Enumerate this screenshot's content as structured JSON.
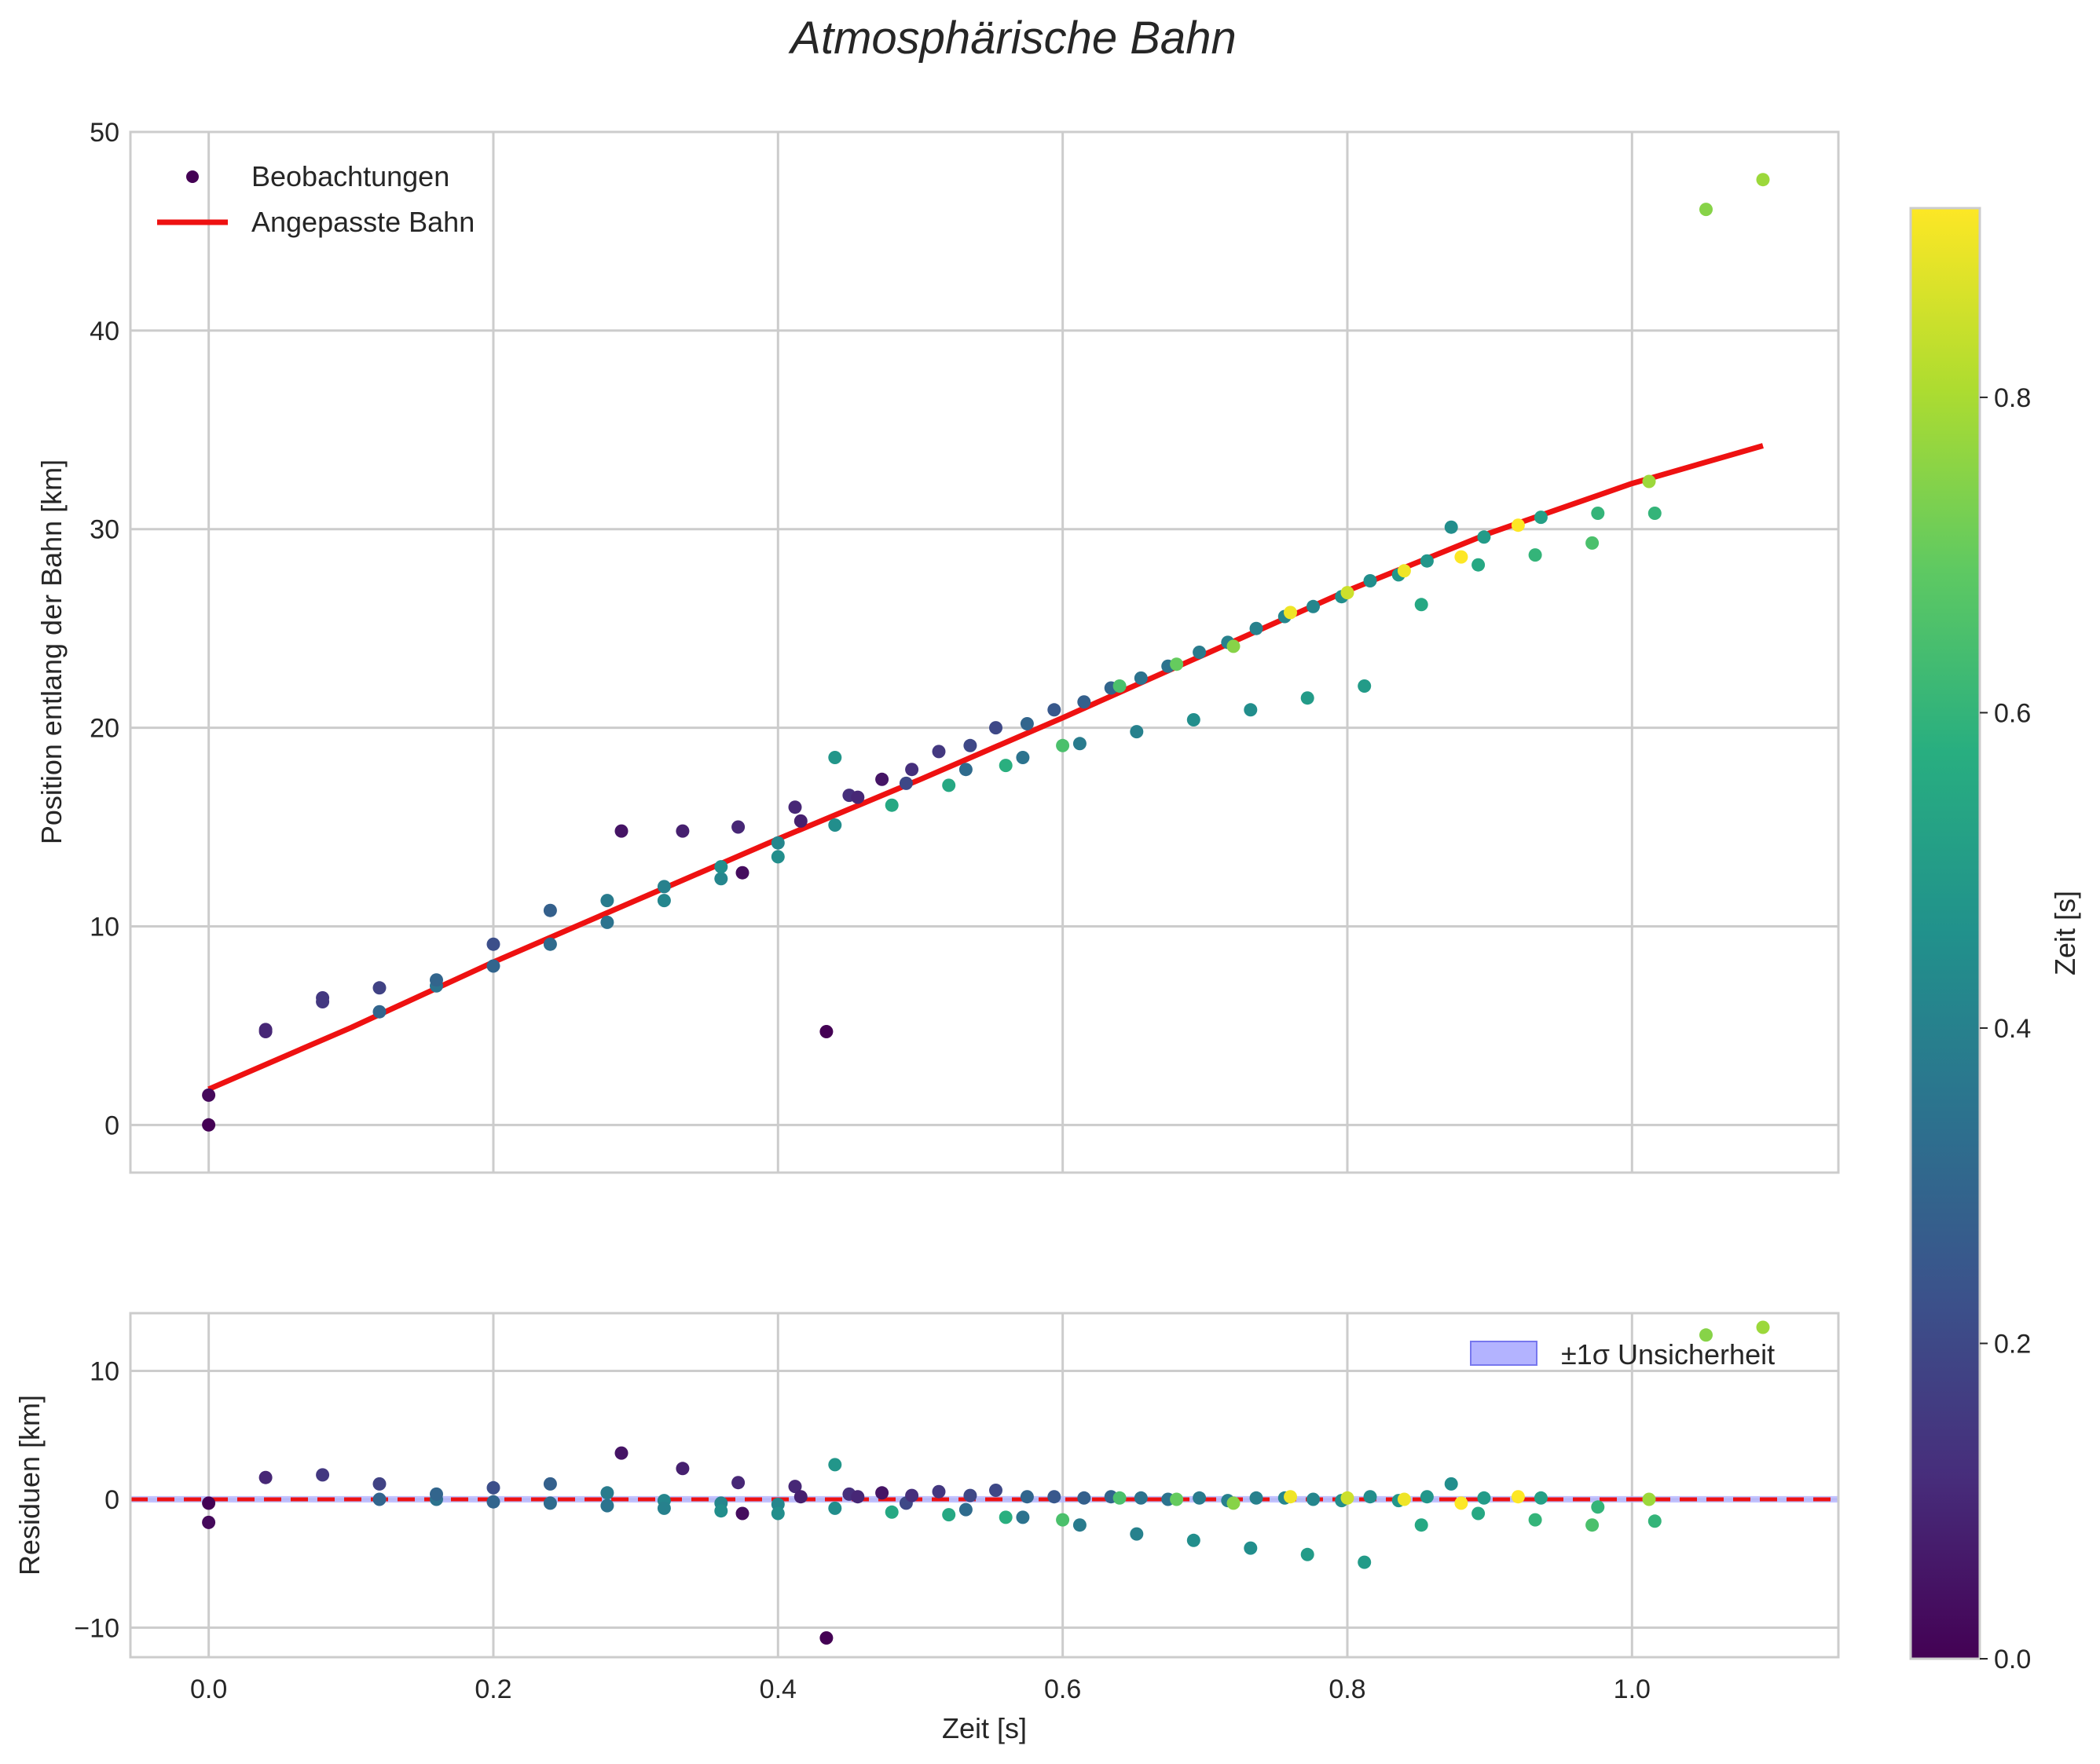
{
  "chart_data": [
    {
      "type": "scatter",
      "title": "Atmosphärische Bahn",
      "xlabel": "",
      "ylabel": "Position entlang der Bahn [km]",
      "xlim": [
        -0.055,
        1.145
      ],
      "ylim": [
        -2.4,
        50
      ],
      "xticks": [
        0.0,
        0.2,
        0.4,
        0.6,
        0.8,
        1.0
      ],
      "yticks": [
        0,
        10,
        20,
        30,
        40,
        50
      ],
      "ytick_labels": [
        "0",
        "10",
        "20",
        "30",
        "40",
        "50"
      ],
      "grid": true,
      "legend": {
        "placement": "top-left",
        "entries": [
          "Beobachtungen",
          "Angepasste Bahn"
        ]
      },
      "series": [
        {
          "name": "Beobachtungen",
          "kind": "scatter",
          "points": [
            [
              0.0,
              0.0,
              0.0
            ],
            [
              0.0,
              1.5,
              0.02
            ],
            [
              0.04,
              4.7,
              0.1
            ],
            [
              0.04,
              4.8,
              0.1
            ],
            [
              0.08,
              6.2,
              0.15
            ],
            [
              0.08,
              6.4,
              0.15
            ],
            [
              0.12,
              5.7,
              0.3
            ],
            [
              0.12,
              6.9,
              0.18
            ],
            [
              0.16,
              7.0,
              0.35
            ],
            [
              0.16,
              7.3,
              0.3
            ],
            [
              0.2,
              8.0,
              0.3
            ],
            [
              0.2,
              9.1,
              0.22
            ],
            [
              0.24,
              9.1,
              0.32
            ],
            [
              0.24,
              10.8,
              0.28
            ],
            [
              0.28,
              10.2,
              0.35
            ],
            [
              0.28,
              11.3,
              0.38
            ],
            [
              0.29,
              14.8,
              0.05
            ],
            [
              0.32,
              11.3,
              0.42
            ],
            [
              0.32,
              12.0,
              0.4
            ],
            [
              0.333,
              14.8,
              0.08
            ],
            [
              0.36,
              12.4,
              0.42
            ],
            [
              0.36,
              13.0,
              0.45
            ],
            [
              0.372,
              15.0,
              0.1
            ],
            [
              0.375,
              12.7,
              0.03
            ],
            [
              0.4,
              13.5,
              0.45
            ],
            [
              0.4,
              14.2,
              0.42
            ],
            [
              0.412,
              16.0,
              0.1
            ],
            [
              0.416,
              15.3,
              0.08
            ],
            [
              0.434,
              4.7,
              0.0
            ],
            [
              0.44,
              15.1,
              0.45
            ],
            [
              0.44,
              18.5,
              0.48
            ],
            [
              0.45,
              16.6,
              0.12
            ],
            [
              0.456,
              16.5,
              0.1
            ],
            [
              0.473,
              17.4,
              0.05
            ],
            [
              0.48,
              16.1,
              0.55
            ],
            [
              0.49,
              17.2,
              0.2
            ],
            [
              0.494,
              17.9,
              0.12
            ],
            [
              0.513,
              18.8,
              0.15
            ],
            [
              0.52,
              17.1,
              0.55
            ],
            [
              0.532,
              17.9,
              0.32
            ],
            [
              0.535,
              19.1,
              0.2
            ],
            [
              0.553,
              20.0,
              0.2
            ],
            [
              0.56,
              18.1,
              0.58
            ],
            [
              0.572,
              18.5,
              0.35
            ],
            [
              0.575,
              20.2,
              0.3
            ],
            [
              0.594,
              20.9,
              0.25
            ],
            [
              0.6,
              19.1,
              0.65
            ],
            [
              0.612,
              19.2,
              0.38
            ],
            [
              0.615,
              21.3,
              0.28
            ],
            [
              0.634,
              22.0,
              0.3
            ],
            [
              0.64,
              22.1,
              0.65
            ],
            [
              0.652,
              19.8,
              0.4
            ],
            [
              0.655,
              22.5,
              0.35
            ],
            [
              0.674,
              23.1,
              0.35
            ],
            [
              0.68,
              23.2,
              0.7
            ],
            [
              0.692,
              20.4,
              0.45
            ],
            [
              0.696,
              23.8,
              0.38
            ],
            [
              0.716,
              24.3,
              0.4
            ],
            [
              0.72,
              24.1,
              0.75
            ],
            [
              0.732,
              20.9,
              0.45
            ],
            [
              0.736,
              25.0,
              0.4
            ],
            [
              0.756,
              25.6,
              0.42
            ],
            [
              0.76,
              25.8,
              0.9
            ],
            [
              0.772,
              21.5,
              0.5
            ],
            [
              0.776,
              26.1,
              0.42
            ],
            [
              0.796,
              26.6,
              0.45
            ],
            [
              0.8,
              26.8,
              0.85
            ],
            [
              0.812,
              22.1,
              0.5
            ],
            [
              0.816,
              27.4,
              0.45
            ],
            [
              0.836,
              27.7,
              0.48
            ],
            [
              0.84,
              27.9,
              0.9
            ],
            [
              0.852,
              26.2,
              0.55
            ],
            [
              0.856,
              28.4,
              0.48
            ],
            [
              0.873,
              30.1,
              0.45
            ],
            [
              0.88,
              28.6,
              0.92
            ],
            [
              0.892,
              28.2,
              0.55
            ],
            [
              0.896,
              29.6,
              0.5
            ],
            [
              0.92,
              30.2,
              0.92
            ],
            [
              0.932,
              28.7,
              0.6
            ],
            [
              0.936,
              30.6,
              0.52
            ],
            [
              0.972,
              29.3,
              0.65
            ],
            [
              0.976,
              30.8,
              0.6
            ],
            [
              1.012,
              32.4,
              0.78
            ],
            [
              1.016,
              30.8,
              0.6
            ],
            [
              1.052,
              46.1,
              0.75
            ],
            [
              1.092,
              47.6,
              0.78
            ]
          ]
        },
        {
          "name": "Angepasste Bahn",
          "kind": "line",
          "color": "#ee1111",
          "x": [
            0.0,
            0.1,
            0.2,
            0.3,
            0.4,
            0.5,
            0.6,
            0.7,
            0.8,
            0.9,
            1.0,
            1.092
          ],
          "y": [
            1.8,
            4.9,
            8.2,
            11.3,
            14.4,
            17.4,
            20.5,
            23.7,
            26.9,
            29.8,
            32.3,
            34.2
          ]
        }
      ]
    },
    {
      "type": "scatter",
      "title": "",
      "xlabel": "Zeit [s]",
      "ylabel": "Residuen [km]",
      "xlim": [
        -0.055,
        1.145
      ],
      "ylim": [
        -12.3,
        14.5
      ],
      "xticks": [
        0.0,
        0.2,
        0.4,
        0.6,
        0.8,
        1.0
      ],
      "xtick_labels": [
        "0.0",
        "0.2",
        "0.4",
        "0.6",
        "0.8",
        "1.0"
      ],
      "yticks": [
        -10,
        0,
        10
      ],
      "ytick_labels": [
        "−10",
        "0",
        "10"
      ],
      "grid": true,
      "reference_line": {
        "y": 0,
        "color": "#ee1111",
        "style": "dashed"
      },
      "band": {
        "name": "±1σ Unsicherheit",
        "y": [
          -0.25,
          0.25
        ],
        "color": "#b3b3ff"
      },
      "legend": {
        "placement": "top-right",
        "entries": [
          "±1σ Unsicherheit"
        ]
      },
      "series": [
        {
          "name": "Residuen",
          "kind": "scatter",
          "points": [
            [
              0.0,
              -1.8,
              0.02
            ],
            [
              0.0,
              -0.3,
              0.0
            ],
            [
              0.04,
              1.7,
              0.1
            ],
            [
              0.08,
              1.9,
              0.15
            ],
            [
              0.12,
              0.0,
              0.3
            ],
            [
              0.12,
              1.2,
              0.18
            ],
            [
              0.16,
              0.0,
              0.35
            ],
            [
              0.16,
              0.4,
              0.3
            ],
            [
              0.2,
              -0.2,
              0.3
            ],
            [
              0.2,
              0.9,
              0.22
            ],
            [
              0.24,
              -0.3,
              0.32
            ],
            [
              0.24,
              1.2,
              0.28
            ],
            [
              0.28,
              -0.5,
              0.35
            ],
            [
              0.28,
              0.5,
              0.38
            ],
            [
              0.29,
              3.6,
              0.05
            ],
            [
              0.32,
              -0.1,
              0.42
            ],
            [
              0.32,
              -0.7,
              0.4
            ],
            [
              0.333,
              2.4,
              0.08
            ],
            [
              0.36,
              -0.3,
              0.42
            ],
            [
              0.36,
              -0.9,
              0.45
            ],
            [
              0.372,
              1.3,
              0.1
            ],
            [
              0.375,
              -1.1,
              0.03
            ],
            [
              0.4,
              -0.4,
              0.42
            ],
            [
              0.4,
              -1.1,
              0.45
            ],
            [
              0.412,
              1.0,
              0.1
            ],
            [
              0.416,
              0.2,
              0.08
            ],
            [
              0.434,
              -10.8,
              0.0
            ],
            [
              0.44,
              -0.7,
              0.45
            ],
            [
              0.44,
              2.7,
              0.48
            ],
            [
              0.45,
              0.4,
              0.12
            ],
            [
              0.456,
              0.2,
              0.1
            ],
            [
              0.473,
              0.5,
              0.05
            ],
            [
              0.48,
              -1.0,
              0.55
            ],
            [
              0.49,
              -0.3,
              0.2
            ],
            [
              0.494,
              0.3,
              0.12
            ],
            [
              0.513,
              0.6,
              0.15
            ],
            [
              0.52,
              -1.2,
              0.55
            ],
            [
              0.532,
              -0.8,
              0.32
            ],
            [
              0.535,
              0.3,
              0.2
            ],
            [
              0.553,
              0.7,
              0.2
            ],
            [
              0.56,
              -1.4,
              0.58
            ],
            [
              0.572,
              -1.4,
              0.35
            ],
            [
              0.575,
              0.2,
              0.3
            ],
            [
              0.594,
              0.2,
              0.25
            ],
            [
              0.6,
              -1.6,
              0.65
            ],
            [
              0.612,
              -2.0,
              0.38
            ],
            [
              0.615,
              0.1,
              0.28
            ],
            [
              0.634,
              0.2,
              0.3
            ],
            [
              0.64,
              0.1,
              0.65
            ],
            [
              0.652,
              -2.7,
              0.4
            ],
            [
              0.655,
              0.1,
              0.35
            ],
            [
              0.674,
              0.0,
              0.35
            ],
            [
              0.68,
              0.0,
              0.7
            ],
            [
              0.692,
              -3.2,
              0.45
            ],
            [
              0.696,
              0.1,
              0.38
            ],
            [
              0.716,
              -0.1,
              0.4
            ],
            [
              0.72,
              -0.3,
              0.75
            ],
            [
              0.732,
              -3.8,
              0.45
            ],
            [
              0.736,
              0.1,
              0.4
            ],
            [
              0.756,
              0.1,
              0.42
            ],
            [
              0.76,
              0.2,
              0.9
            ],
            [
              0.772,
              -4.3,
              0.5
            ],
            [
              0.776,
              0.0,
              0.42
            ],
            [
              0.796,
              -0.1,
              0.45
            ],
            [
              0.8,
              0.1,
              0.85
            ],
            [
              0.812,
              -4.9,
              0.5
            ],
            [
              0.816,
              0.2,
              0.45
            ],
            [
              0.836,
              -0.1,
              0.48
            ],
            [
              0.84,
              0.0,
              0.9
            ],
            [
              0.852,
              -2.0,
              0.55
            ],
            [
              0.856,
              0.2,
              0.48
            ],
            [
              0.873,
              1.2,
              0.45
            ],
            [
              0.88,
              -0.3,
              0.92
            ],
            [
              0.892,
              -1.1,
              0.55
            ],
            [
              0.896,
              0.1,
              0.5
            ],
            [
              0.92,
              0.2,
              0.92
            ],
            [
              0.932,
              -1.6,
              0.6
            ],
            [
              0.936,
              0.1,
              0.52
            ],
            [
              0.972,
              -2.0,
              0.65
            ],
            [
              0.976,
              -0.6,
              0.6
            ],
            [
              1.012,
              0.0,
              0.78
            ],
            [
              1.016,
              -1.7,
              0.6
            ],
            [
              1.052,
              12.8,
              0.75
            ],
            [
              1.092,
              13.4,
              0.78
            ]
          ]
        }
      ]
    },
    {
      "type": "colorbar",
      "label": "Zeit [s]",
      "colormap": "viridis",
      "range": [
        0.0,
        0.92
      ],
      "ticks": [
        0.0,
        0.2,
        0.4,
        0.6,
        0.8
      ],
      "tick_labels": [
        "0.0",
        "0.2",
        "0.4",
        "0.6",
        "0.8"
      ]
    }
  ]
}
